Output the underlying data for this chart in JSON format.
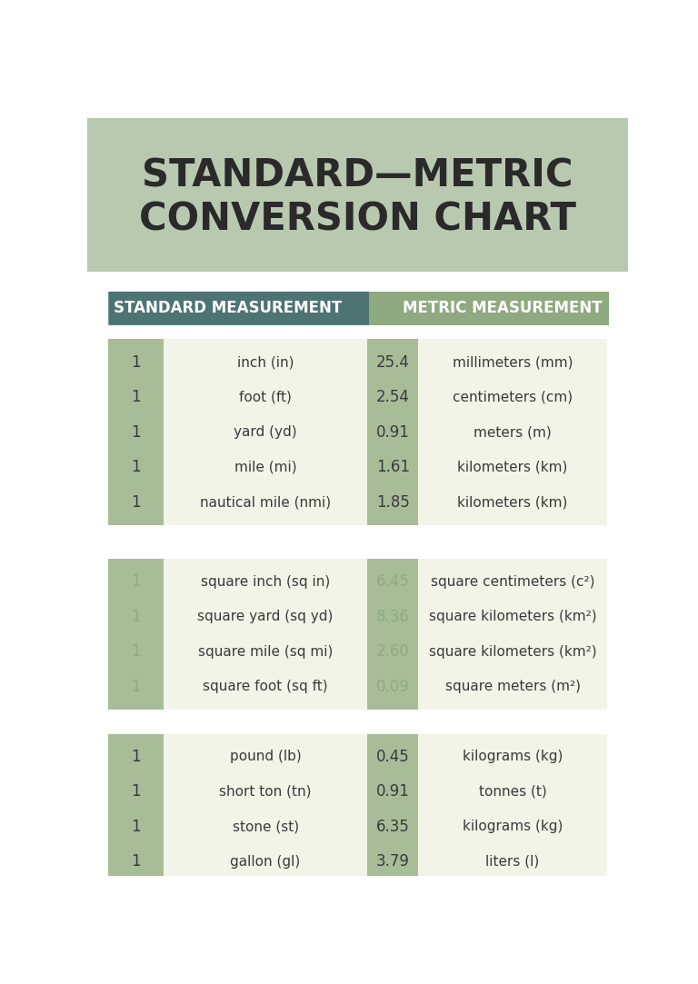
{
  "title_line1": "STANDARD—METRIC",
  "title_line2": "CONVERSION CHART",
  "title_bg_color": "#b8c9b0",
  "title_text_color": "#2a2a2a",
  "page_bg_color": "#ffffff",
  "body_bg_color": "#ffffff",
  "header_left_text": "STANDARD MEASUREMENT",
  "header_right_text": "METRIC MEASUREMENT",
  "header_left_bg": "#4d7373",
  "header_right_bg": "#8faa80",
  "header_text_color": "#ffffff",
  "section_bg_light": "#f2f4e8",
  "num_col_left_bg": "#a8bc98",
  "num_col_right_bg": "#a8bc98",
  "sections": [
    {
      "rows": [
        {
          "val1": "1",
          "standard": "inch (in)",
          "val2": "25.4",
          "metric": "millimeters (mm)"
        },
        {
          "val1": "1",
          "standard": "foot (ft)",
          "val2": "2.54",
          "metric": "centimeters (cm)"
        },
        {
          "val1": "1",
          "standard": "yard (yd)",
          "val2": "0.91",
          "metric": "meters (m)"
        },
        {
          "val1": "1",
          "standard": "mile (mi)",
          "val2": "1.61",
          "metric": "kilometers (km)"
        },
        {
          "val1": "1",
          "standard": "nautical mile (nmi)",
          "val2": "1.85",
          "metric": "kilometers (km)"
        }
      ],
      "num1_color": "#3a3a3a",
      "num2_color": "#3a3a3a",
      "text_color": "#3a3a3a"
    },
    {
      "rows": [
        {
          "val1": "1",
          "standard": "square inch (sq in)",
          "val2": "6.45",
          "metric": "square centimeters (c²)"
        },
        {
          "val1": "1",
          "standard": "square yard (sq yd)",
          "val2": "8.36",
          "metric": "square kilometers (km²)"
        },
        {
          "val1": "1",
          "standard": "square mile (sq mi)",
          "val2": "2.60",
          "metric": "square kilometers (km²)"
        },
        {
          "val1": "1",
          "standard": "square foot (sq ft)",
          "val2": "0.09",
          "metric": "square meters (m²)"
        }
      ],
      "num1_color": "#8faa80",
      "num2_color": "#8faa80",
      "text_color": "#3a3a3a"
    },
    {
      "rows": [
        {
          "val1": "1",
          "standard": "pound (lb)",
          "val2": "0.45",
          "metric": "kilograms (kg)"
        },
        {
          "val1": "1",
          "standard": "short ton (tn)",
          "val2": "0.91",
          "metric": "tonnes (t)"
        },
        {
          "val1": "1",
          "standard": "stone (st)",
          "val2": "6.35",
          "metric": "kilograms (kg)"
        },
        {
          "val1": "1",
          "standard": "gallon (gl)",
          "val2": "3.79",
          "metric": "liters (l)"
        }
      ],
      "num1_color": "#3a3a3a",
      "num2_color": "#3a3a3a",
      "text_color": "#3a3a3a"
    }
  ]
}
